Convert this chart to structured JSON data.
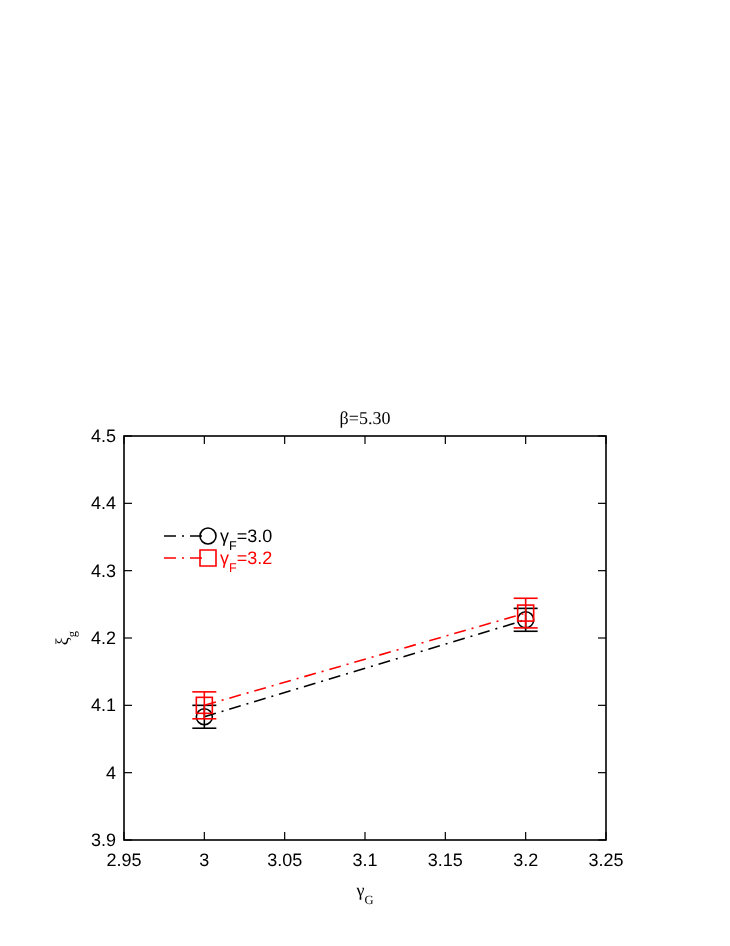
{
  "chart_data": {
    "type": "line",
    "title": "β=5.30",
    "xlabel": "γ$_{G}$",
    "ylabel": "ξ$_{g}$",
    "xlim": [
      2.95,
      3.25
    ],
    "xticks": [
      2.95,
      3,
      3.05,
      3.1,
      3.15,
      3.2,
      3.25
    ],
    "ylim": [
      3.9,
      4.5
    ],
    "yticks": [
      3.9,
      4,
      4.1,
      4.2,
      4.3,
      4.4,
      4.5
    ],
    "x": [
      3,
      3.2
    ],
    "legend": "top left",
    "grid": false,
    "line_style": "dashed",
    "series": [
      {
        "name": "γ$_{F}$=3.0",
        "color": "#000000",
        "marker": "circle",
        "values": [
          4.083,
          4.227
        ],
        "errors": [
          0.017,
          0.017
        ]
      },
      {
        "name": "γ$_{F}$=3.2",
        "color": "#ff0000",
        "marker": "square",
        "values": [
          4.1,
          4.237
        ],
        "errors": [
          0.02,
          0.022
        ]
      }
    ]
  }
}
